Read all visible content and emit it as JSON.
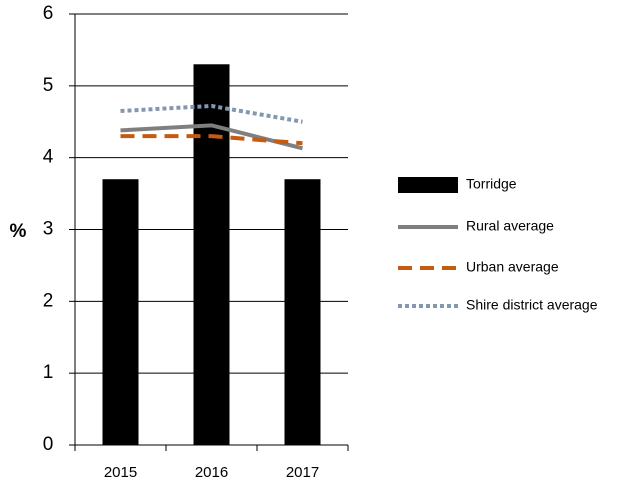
{
  "chart_data": {
    "type": "bar",
    "y_label": "%",
    "categories": [
      "2015",
      "2016",
      "2017"
    ],
    "series": [
      {
        "name": "Torridge",
        "type": "bar",
        "color": "#000000",
        "values": [
          3.7,
          5.3,
          3.7
        ]
      },
      {
        "name": "Rural average",
        "type": "line",
        "style": "solid",
        "color": "#7f7f7f",
        "values": [
          4.38,
          4.45,
          4.13
        ]
      },
      {
        "name": "Urban average",
        "type": "line",
        "style": "dashed",
        "color": "#c55a11",
        "values": [
          4.3,
          4.3,
          4.2
        ]
      },
      {
        "name": "Shire district average",
        "type": "line",
        "style": "dotted",
        "color": "#8497b0",
        "values": [
          4.65,
          4.72,
          4.5
        ]
      }
    ],
    "ylim": [
      0,
      6
    ],
    "yticks": [
      0,
      1,
      2,
      3,
      4,
      5,
      6
    ],
    "grid": true,
    "legend": "right"
  }
}
